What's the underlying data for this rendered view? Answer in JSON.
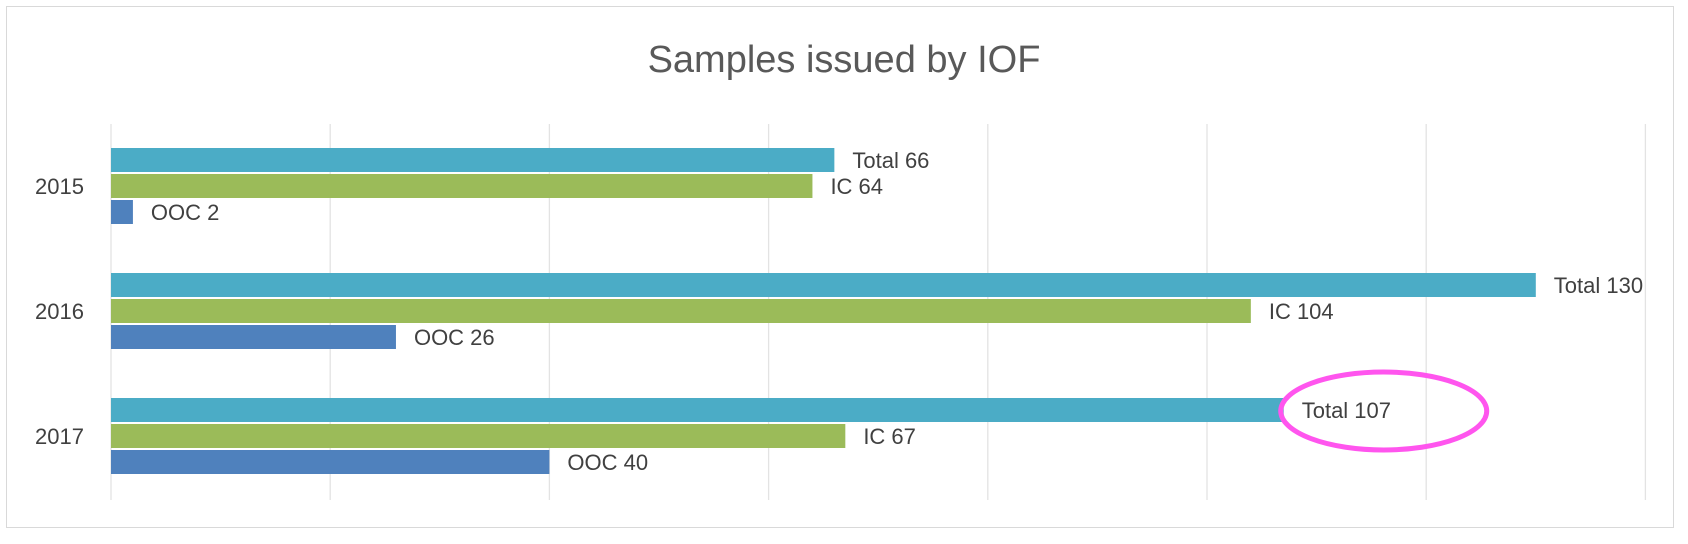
{
  "chart_data": {
    "type": "bar",
    "orientation": "horizontal",
    "title": "Samples issued by IOF",
    "categories": [
      "2015",
      "2016",
      "2017"
    ],
    "series": [
      {
        "key": "OOC",
        "color": "#4f81bd",
        "values": [
          2,
          26,
          40
        ],
        "labels": [
          "OOC 2",
          "OOC 26",
          "OOC 40"
        ]
      },
      {
        "key": "IC",
        "color": "#9bbb59",
        "values": [
          64,
          104,
          67
        ],
        "labels": [
          "IC 64",
          "IC 104",
          "IC 67"
        ]
      },
      {
        "key": "Total",
        "color": "#4bacc6",
        "values": [
          66,
          130,
          107
        ],
        "labels": [
          "Total 66",
          "Total 130",
          "Total 107"
        ]
      }
    ],
    "xlim": [
      0,
      140
    ],
    "grid": true,
    "legend": "none",
    "annotations": [
      {
        "type": "ellipse",
        "target": "Total 107",
        "color": "#ff55ee"
      }
    ]
  }
}
